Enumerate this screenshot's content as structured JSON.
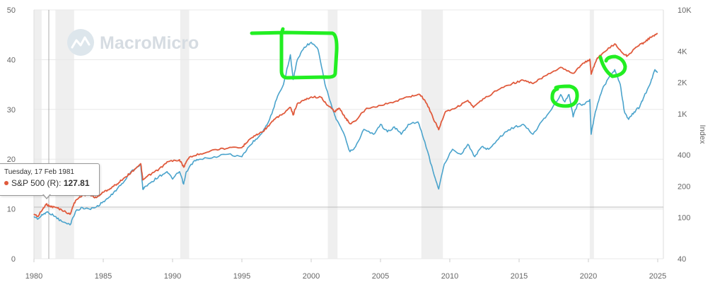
{
  "watermark": "MacroMicro",
  "tooltip": {
    "date": "Tuesday, 17 Feb 1981",
    "series_label": "S&P 500 (R): ",
    "value": "127.81"
  },
  "colors": {
    "left_series": "#4aa3cc",
    "right_series": "#e05a3c",
    "annotation": "#22ee22",
    "recession": "#efefef"
  },
  "chart_data": {
    "type": "line",
    "xlim": [
      1980,
      2025
    ],
    "x_ticks": [
      "1980",
      "1985",
      "1990",
      "1995",
      "2000",
      "2005",
      "2010",
      "2015",
      "2020",
      "2025"
    ],
    "y_left": {
      "label": "",
      "range": [
        0,
        50
      ],
      "ticks": [
        "0",
        "10",
        "20",
        "30",
        "40",
        "50"
      ]
    },
    "y_right": {
      "label": "Index",
      "scale": "log",
      "range": [
        40,
        10000
      ],
      "ticks": [
        "40",
        "100",
        "200",
        "400",
        "1K",
        "2K",
        "4K",
        "10K"
      ]
    },
    "recessions": [
      [
        1980.0,
        1980.55
      ],
      [
        1981.55,
        1982.9
      ],
      [
        1990.55,
        1991.2
      ],
      [
        2001.2,
        2001.9
      ],
      [
        2007.95,
        2009.5
      ],
      [
        2020.1,
        2020.4
      ]
    ],
    "series": [
      {
        "axis": "left",
        "values": [
          [
            1980.0,
            8.5
          ],
          [
            1980.3,
            8.0
          ],
          [
            1980.7,
            9.0
          ],
          [
            1981.0,
            9.4
          ],
          [
            1981.5,
            8.5
          ],
          [
            1982.0,
            7.5
          ],
          [
            1982.6,
            6.8
          ],
          [
            1983.0,
            9.5
          ],
          [
            1983.5,
            10.3
          ],
          [
            1984.0,
            10.0
          ],
          [
            1984.5,
            10.4
          ],
          [
            1985.0,
            11.5
          ],
          [
            1985.5,
            12.5
          ],
          [
            1986.0,
            14.0
          ],
          [
            1986.5,
            15.5
          ],
          [
            1987.0,
            17.5
          ],
          [
            1987.7,
            19.0
          ],
          [
            1987.85,
            14.0
          ],
          [
            1988.0,
            14.5
          ],
          [
            1988.5,
            15.5
          ],
          [
            1989.0,
            16.5
          ],
          [
            1989.6,
            17.5
          ],
          [
            1990.0,
            16.0
          ],
          [
            1990.5,
            17.5
          ],
          [
            1990.8,
            15.0
          ],
          [
            1991.0,
            17.5
          ],
          [
            1991.5,
            19.5
          ],
          [
            1992.0,
            20.0
          ],
          [
            1993.0,
            20.5
          ],
          [
            1994.0,
            21.0
          ],
          [
            1995.0,
            20.5
          ],
          [
            1995.5,
            22.5
          ],
          [
            1996.0,
            24.0
          ],
          [
            1996.5,
            25.5
          ],
          [
            1997.0,
            28.0
          ],
          [
            1997.5,
            32.0
          ],
          [
            1998.0,
            35.0
          ],
          [
            1998.5,
            41.0
          ],
          [
            1998.7,
            36.0
          ],
          [
            1999.0,
            40.0
          ],
          [
            1999.5,
            42.5
          ],
          [
            2000.0,
            43.5
          ],
          [
            2000.5,
            42.0
          ],
          [
            2001.0,
            35.0
          ],
          [
            2001.5,
            30.5
          ],
          [
            2001.8,
            28.0
          ],
          [
            2002.3,
            25.5
          ],
          [
            2002.8,
            21.5
          ],
          [
            2003.2,
            22.5
          ],
          [
            2003.8,
            26.0
          ],
          [
            2004.5,
            25.0
          ],
          [
            2005.0,
            27.0
          ],
          [
            2005.5,
            25.5
          ],
          [
            2006.0,
            26.5
          ],
          [
            2006.5,
            25.0
          ],
          [
            2007.0,
            27.0
          ],
          [
            2007.7,
            27.5
          ],
          [
            2008.2,
            23.5
          ],
          [
            2008.8,
            17.5
          ],
          [
            2009.2,
            14.0
          ],
          [
            2009.6,
            19.0
          ],
          [
            2010.2,
            22.0
          ],
          [
            2010.8,
            21.0
          ],
          [
            2011.3,
            23.0
          ],
          [
            2011.8,
            20.5
          ],
          [
            2012.3,
            22.5
          ],
          [
            2012.8,
            22.0
          ],
          [
            2013.5,
            24.0
          ],
          [
            2014.0,
            25.5
          ],
          [
            2014.7,
            26.5
          ],
          [
            2015.3,
            27.0
          ],
          [
            2016.0,
            25.0
          ],
          [
            2016.6,
            27.5
          ],
          [
            2017.2,
            29.5
          ],
          [
            2018.0,
            33.0
          ],
          [
            2018.3,
            31.5
          ],
          [
            2018.6,
            33.0
          ],
          [
            2018.9,
            28.5
          ],
          [
            2019.2,
            31.0
          ],
          [
            2019.7,
            31.0
          ],
          [
            2020.1,
            32.0
          ],
          [
            2020.2,
            25.0
          ],
          [
            2020.5,
            29.5
          ],
          [
            2021.0,
            34.0
          ],
          [
            2021.5,
            36.5
          ],
          [
            2021.9,
            38.0
          ],
          [
            2022.3,
            35.0
          ],
          [
            2022.6,
            29.5
          ],
          [
            2022.9,
            28.0
          ],
          [
            2023.3,
            29.5
          ],
          [
            2023.7,
            30.5
          ],
          [
            2024.0,
            32.5
          ],
          [
            2024.5,
            35.5
          ],
          [
            2024.8,
            38.0
          ],
          [
            2025.0,
            37.5
          ]
        ]
      },
      {
        "axis": "right",
        "values": [
          [
            1980.0,
            108
          ],
          [
            1980.3,
            102
          ],
          [
            1980.9,
            135
          ],
          [
            1981.1,
            128
          ],
          [
            1981.6,
            125
          ],
          [
            1982.0,
            118
          ],
          [
            1982.6,
            107
          ],
          [
            1983.0,
            145
          ],
          [
            1983.5,
            165
          ],
          [
            1984.0,
            165
          ],
          [
            1984.5,
            155
          ],
          [
            1985.0,
            175
          ],
          [
            1985.5,
            190
          ],
          [
            1986.0,
            210
          ],
          [
            1986.5,
            240
          ],
          [
            1987.0,
            270
          ],
          [
            1987.7,
            330
          ],
          [
            1987.85,
            230
          ],
          [
            1988.5,
            265
          ],
          [
            1989.0,
            290
          ],
          [
            1989.7,
            345
          ],
          [
            1990.5,
            360
          ],
          [
            1990.8,
            305
          ],
          [
            1991.2,
            380
          ],
          [
            1992.0,
            410
          ],
          [
            1993.0,
            450
          ],
          [
            1994.0,
            465
          ],
          [
            1995.0,
            470
          ],
          [
            1995.5,
            560
          ],
          [
            1996.0,
            620
          ],
          [
            1996.5,
            670
          ],
          [
            1997.0,
            780
          ],
          [
            1997.5,
            920
          ],
          [
            1998.0,
            1000
          ],
          [
            1998.5,
            1150
          ],
          [
            1998.7,
            970
          ],
          [
            1999.0,
            1250
          ],
          [
            1999.5,
            1350
          ],
          [
            2000.0,
            1450
          ],
          [
            2000.7,
            1440
          ],
          [
            2001.2,
            1200
          ],
          [
            2001.7,
            1050
          ],
          [
            2002.0,
            1130
          ],
          [
            2002.5,
            900
          ],
          [
            2002.8,
            800
          ],
          [
            2003.2,
            850
          ],
          [
            2004.0,
            1130
          ],
          [
            2005.0,
            1200
          ],
          [
            2006.0,
            1300
          ],
          [
            2007.0,
            1450
          ],
          [
            2007.8,
            1540
          ],
          [
            2008.2,
            1350
          ],
          [
            2008.8,
            900
          ],
          [
            2009.2,
            700
          ],
          [
            2009.7,
            1050
          ],
          [
            2010.5,
            1150
          ],
          [
            2011.3,
            1340
          ],
          [
            2011.7,
            1150
          ],
          [
            2012.5,
            1400
          ],
          [
            2013.5,
            1700
          ],
          [
            2014.5,
            1950
          ],
          [
            2015.3,
            2100
          ],
          [
            2016.0,
            1950
          ],
          [
            2017.0,
            2350
          ],
          [
            2018.0,
            2800
          ],
          [
            2018.9,
            2450
          ],
          [
            2019.5,
            2950
          ],
          [
            2020.1,
            3350
          ],
          [
            2020.2,
            2400
          ],
          [
            2020.6,
            3350
          ],
          [
            2021.0,
            3800
          ],
          [
            2021.9,
            4700
          ],
          [
            2022.5,
            3800
          ],
          [
            2022.8,
            3600
          ],
          [
            2023.5,
            4400
          ],
          [
            2024.0,
            4850
          ],
          [
            2024.5,
            5450
          ],
          [
            2025.0,
            5900
          ]
        ]
      }
    ]
  }
}
